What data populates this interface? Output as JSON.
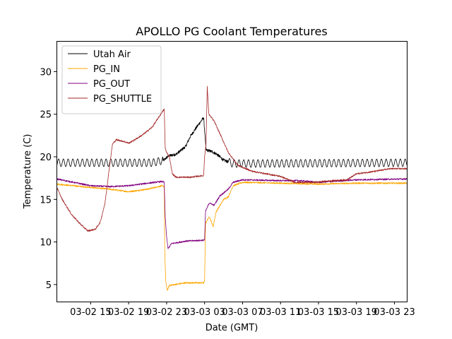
{
  "chart_data": {
    "type": "line",
    "title": "APOLLO PG Coolant Temperatures",
    "xlabel": "Date (GMT)",
    "ylabel": "Temperature (C)",
    "x_unit": "hours since 03-02 15:00 GMT",
    "xlim": [
      -3.6,
      33.3
    ],
    "ylim": [
      3.0,
      33.6
    ],
    "x_ticks": [
      {
        "value": 0,
        "label": "03-02 15"
      },
      {
        "value": 4,
        "label": "03-02 19"
      },
      {
        "value": 8,
        "label": "03-02 23"
      },
      {
        "value": 12,
        "label": "03-03 03"
      },
      {
        "value": 16,
        "label": "03-03 07"
      },
      {
        "value": 20,
        "label": "03-03 11"
      },
      {
        "value": 24,
        "label": "03-03 15"
      },
      {
        "value": 28,
        "label": "03-03 19"
      },
      {
        "value": 32,
        "label": "03-03 23"
      }
    ],
    "y_ticks": [
      {
        "value": 5,
        "label": "5"
      },
      {
        "value": 10,
        "label": "10"
      },
      {
        "value": 15,
        "label": "15"
      },
      {
        "value": 20,
        "label": "20"
      },
      {
        "value": 25,
        "label": "25"
      },
      {
        "value": 30,
        "label": "30"
      }
    ],
    "legend_position": "top-left",
    "grid": false,
    "series": [
      {
        "name": "Utah Air",
        "color": "#000000",
        "oscillation": {
          "amplitude": 0.45,
          "period": 0.5
        },
        "points": [
          [
            -3.6,
            19.3
          ],
          [
            6.5,
            19.3
          ],
          [
            7.7,
            19.6
          ],
          [
            8.2,
            20.1
          ],
          [
            9.0,
            20.3
          ],
          [
            10.0,
            21.2
          ],
          [
            10.5,
            22.4
          ],
          [
            11.3,
            23.7
          ],
          [
            11.9,
            24.6
          ],
          [
            12.15,
            20.8
          ],
          [
            12.8,
            20.6
          ],
          [
            13.3,
            20.3
          ],
          [
            14.0,
            19.6
          ],
          [
            15.0,
            19.2
          ],
          [
            33.3,
            19.3
          ]
        ]
      },
      {
        "name": "PG_IN",
        "color": "#ffa500",
        "points": [
          [
            -3.6,
            16.8
          ],
          [
            0.0,
            16.4
          ],
          [
            2.0,
            16.2
          ],
          [
            4.0,
            15.9
          ],
          [
            6.0,
            16.2
          ],
          [
            7.5,
            16.6
          ],
          [
            7.75,
            16.5
          ],
          [
            7.8,
            9.0
          ],
          [
            7.9,
            5.5
          ],
          [
            8.05,
            4.3
          ],
          [
            8.3,
            4.9
          ],
          [
            10.0,
            5.2
          ],
          [
            11.9,
            5.2
          ],
          [
            12.0,
            5.4
          ],
          [
            12.1,
            12.2
          ],
          [
            12.5,
            13.0
          ],
          [
            12.9,
            11.8
          ],
          [
            13.2,
            13.5
          ],
          [
            14.0,
            15.0
          ],
          [
            14.5,
            15.3
          ],
          [
            15.0,
            16.6
          ],
          [
            16.0,
            17.0
          ],
          [
            20.0,
            16.9
          ],
          [
            24.0,
            16.8
          ],
          [
            28.0,
            16.9
          ],
          [
            33.3,
            16.9
          ]
        ]
      },
      {
        "name": "PG_OUT",
        "color": "#800080",
        "points": [
          [
            -3.6,
            17.4
          ],
          [
            0.0,
            16.6
          ],
          [
            2.0,
            16.5
          ],
          [
            4.0,
            16.6
          ],
          [
            6.0,
            16.9
          ],
          [
            7.5,
            17.1
          ],
          [
            7.75,
            17.0
          ],
          [
            7.85,
            13.0
          ],
          [
            8.0,
            10.6
          ],
          [
            8.15,
            9.2
          ],
          [
            8.5,
            9.8
          ],
          [
            10.0,
            10.1
          ],
          [
            11.9,
            10.2
          ],
          [
            12.0,
            10.3
          ],
          [
            12.1,
            13.6
          ],
          [
            12.5,
            14.6
          ],
          [
            13.0,
            14.3
          ],
          [
            13.6,
            15.4
          ],
          [
            14.5,
            16.2
          ],
          [
            15.0,
            17.0
          ],
          [
            16.0,
            17.3
          ],
          [
            20.0,
            17.2
          ],
          [
            22.0,
            17.2
          ],
          [
            24.0,
            17.0
          ],
          [
            28.0,
            17.3
          ],
          [
            33.3,
            17.4
          ]
        ]
      },
      {
        "name": "PG_SHUTTLE",
        "color": "#a52a2a",
        "points": [
          [
            -3.6,
            16.5
          ],
          [
            -3.0,
            15.0
          ],
          [
            -2.0,
            13.2
          ],
          [
            -1.0,
            12.0
          ],
          [
            -0.3,
            11.3
          ],
          [
            0.5,
            11.5
          ],
          [
            1.0,
            12.3
          ],
          [
            1.5,
            14.5
          ],
          [
            2.0,
            19.0
          ],
          [
            2.3,
            21.5
          ],
          [
            2.7,
            22.0
          ],
          [
            3.5,
            21.8
          ],
          [
            4.0,
            21.6
          ],
          [
            4.5,
            21.9
          ],
          [
            5.5,
            22.6
          ],
          [
            6.5,
            23.5
          ],
          [
            7.5,
            25.2
          ],
          [
            7.75,
            25.6
          ],
          [
            7.85,
            21.0
          ],
          [
            8.0,
            20.5
          ],
          [
            8.3,
            20.0
          ],
          [
            8.6,
            18.0
          ],
          [
            9.0,
            17.6
          ],
          [
            10.5,
            17.6
          ],
          [
            11.9,
            17.8
          ],
          [
            12.0,
            20.0
          ],
          [
            12.15,
            21.5
          ],
          [
            12.28,
            28.2
          ],
          [
            12.45,
            25.0
          ],
          [
            13.0,
            24.2
          ],
          [
            13.7,
            22.5
          ],
          [
            14.5,
            20.5
          ],
          [
            15.5,
            19.0
          ],
          [
            17.0,
            18.3
          ],
          [
            20.0,
            17.7
          ],
          [
            21.5,
            17.0
          ],
          [
            23.5,
            17.0
          ],
          [
            25.5,
            17.2
          ],
          [
            27.0,
            17.3
          ],
          [
            28.0,
            18.0
          ],
          [
            30.0,
            18.3
          ],
          [
            31.5,
            18.6
          ],
          [
            33.3,
            18.6
          ]
        ]
      }
    ]
  }
}
